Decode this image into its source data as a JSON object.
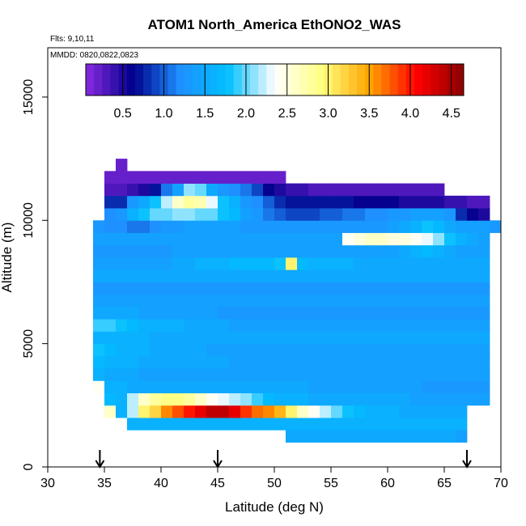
{
  "chart_data": {
    "type": "heatmap",
    "title": "ATOM1 North_America EthONO2_WAS",
    "flights_note": "Flts: 9,10,11",
    "dates_note": "MMDD: 0820,0822,0823",
    "xlabel": "Latitude (deg N)",
    "ylabel": "Altitude (m)",
    "xlim": [
      30,
      70
    ],
    "ylim": [
      0,
      17000
    ],
    "x_ticks": [
      "30",
      "35",
      "40",
      "45",
      "50",
      "55",
      "60",
      "65",
      "70"
    ],
    "y_ticks": [
      "0",
      "5000",
      "10000",
      "15000"
    ],
    "colorbar": {
      "range": [
        0.05,
        4.65
      ],
      "tick_values": [
        0.5,
        1.0,
        1.5,
        2.0,
        2.5,
        3.0,
        3.5,
        4.0,
        4.5
      ],
      "tick_labels": [
        "0.5",
        "1.0",
        "1.5",
        "2.0",
        "2.5",
        "3.0",
        "3.5",
        "4.0",
        "4.5"
      ],
      "colors": [
        "#8a2be2",
        "#00008b",
        "#1e90ff",
        "#00bfff",
        "#ffffff",
        "#ffff80",
        "#ffa500",
        "#ff0000",
        "#8b0000"
      ]
    },
    "grid": false,
    "legend": "colorbar-top",
    "arrows_latitude": [
      34.6,
      45,
      67
    ],
    "cell_size": {
      "dlat": 1.0,
      "dalt": 500
    },
    "rows": [
      {
        "alt": 1000,
        "lat_start": 51,
        "values": [
          1.5,
          1.5,
          1.5,
          1.5,
          1.5,
          1.5,
          1.5,
          1.5,
          1.5,
          1.5,
          1.5,
          1.5,
          1.5,
          1.5,
          1.5,
          1.4
        ]
      },
      {
        "alt": 1500,
        "lat_start": 37,
        "values": [
          1.6,
          1.6,
          1.6,
          1.6,
          1.6,
          1.6,
          1.6,
          1.6,
          1.6,
          1.6,
          1.6,
          1.6,
          1.6,
          1.6,
          1.6,
          1.6,
          1.6,
          1.6,
          1.6,
          1.6,
          1.6,
          1.6,
          1.6,
          1.6,
          1.6,
          1.6,
          1.6,
          1.6,
          1.6,
          1.6
        ]
      },
      {
        "alt": 2000,
        "lat_start": 35,
        "values": [
          2.6,
          1.6,
          2.2,
          3.0,
          3.2,
          3.6,
          3.8,
          4.0,
          4.2,
          4.4,
          4.4,
          4.2,
          3.9,
          3.7,
          3.6,
          3.4,
          3.0,
          2.6,
          2.4,
          2.2,
          2.0,
          1.8,
          1.7,
          1.6,
          1.6,
          1.6,
          1.5,
          1.5,
          1.5,
          1.5,
          1.5,
          1.5
        ]
      },
      {
        "alt": 2500,
        "lat_start": 35,
        "values": [
          1.7,
          1.6,
          2.2,
          2.6,
          2.8,
          2.9,
          2.9,
          2.8,
          2.6,
          2.4,
          2.3,
          2.2,
          2.1,
          1.9,
          1.7,
          1.6,
          1.6,
          1.6,
          1.5,
          1.5,
          1.5,
          1.5,
          1.5,
          1.5,
          1.5,
          1.5,
          1.5,
          1.4,
          1.4,
          1.4,
          1.4,
          1.4,
          1.4,
          1.4
        ]
      },
      {
        "alt": 3000,
        "lat_start": 34,
        "values": [
          2.4,
          1.6,
          1.6,
          1.5,
          1.5,
          1.5,
          1.5,
          1.5,
          1.5,
          1.5,
          1.5,
          1.5,
          1.5,
          1.5,
          1.5,
          1.5,
          1.5,
          1.5,
          1.5,
          1.4,
          1.4,
          1.4,
          1.4,
          1.4,
          1.4,
          1.4,
          1.4,
          1.4,
          1.4,
          1.3,
          1.3,
          1.3,
          1.3,
          1.3,
          1.3
        ]
      },
      {
        "alt": 3500,
        "lat_start": 34,
        "values": [
          1.6,
          1.5,
          1.5,
          1.5,
          1.4,
          1.4,
          1.4,
          1.4,
          1.4,
          1.4,
          1.4,
          1.4,
          1.4,
          1.4,
          1.4,
          1.4,
          1.4,
          1.4,
          1.4,
          1.4,
          1.4,
          1.4,
          1.4,
          1.4,
          1.4,
          1.4,
          1.4,
          1.4,
          1.4,
          1.4,
          1.4,
          1.4,
          1.4,
          1.4,
          1.4
        ]
      },
      {
        "alt": 4000,
        "lat_start": 34,
        "values": [
          1.7,
          1.6,
          1.6,
          1.6,
          1.5,
          1.5,
          1.5,
          1.5,
          1.5,
          1.5,
          1.5,
          1.5,
          1.4,
          1.4,
          1.4,
          1.4,
          1.4,
          1.4,
          1.4,
          1.4,
          1.4,
          1.4,
          1.4,
          1.4,
          1.4,
          1.4,
          1.4,
          1.4,
          1.4,
          1.4,
          1.4,
          1.4,
          1.4,
          1.4,
          1.4
        ]
      },
      {
        "alt": 4500,
        "lat_start": 34,
        "values": [
          1.8,
          1.7,
          1.6,
          1.6,
          1.6,
          1.5,
          1.5,
          1.5,
          1.5,
          1.5,
          1.4,
          1.4,
          1.4,
          1.4,
          1.4,
          1.4,
          1.4,
          1.4,
          1.4,
          1.4,
          1.4,
          1.4,
          1.4,
          1.4,
          1.4,
          1.4,
          1.4,
          1.4,
          1.4,
          1.4,
          1.4,
          1.4,
          1.4,
          1.4,
          1.4
        ]
      },
      {
        "alt": 5000,
        "lat_start": 34,
        "values": [
          1.6,
          1.6,
          1.6,
          1.6,
          1.6,
          1.5,
          1.5,
          1.5,
          1.5,
          1.5,
          1.5,
          1.5,
          1.5,
          1.5,
          1.5,
          1.5,
          1.5,
          1.5,
          1.5,
          1.5,
          1.5,
          1.5,
          1.5,
          1.5,
          1.5,
          1.5,
          1.5,
          1.5,
          1.5,
          1.5,
          1.5,
          1.5,
          1.5,
          1.5,
          1.5
        ]
      },
      {
        "alt": 5500,
        "lat_start": 34,
        "values": [
          1.9,
          1.9,
          1.8,
          1.7,
          1.6,
          1.6,
          1.6,
          1.6,
          1.5,
          1.5,
          1.5,
          1.5,
          1.4,
          1.4,
          1.4,
          1.4,
          1.4,
          1.4,
          1.4,
          1.4,
          1.4,
          1.4,
          1.4,
          1.4,
          1.4,
          1.4,
          1.4,
          1.4,
          1.4,
          1.4,
          1.4,
          1.4,
          1.4,
          1.4,
          1.4
        ]
      },
      {
        "alt": 6000,
        "lat_start": 34,
        "values": [
          1.5,
          1.5,
          1.5,
          1.5,
          1.4,
          1.4,
          1.4,
          1.4,
          1.4,
          1.4,
          1.4,
          1.3,
          1.3,
          1.3,
          1.3,
          1.3,
          1.3,
          1.3,
          1.3,
          1.3,
          1.3,
          1.3,
          1.3,
          1.3,
          1.3,
          1.3,
          1.3,
          1.3,
          1.3,
          1.3,
          1.3,
          1.3,
          1.3,
          1.3,
          1.3
        ]
      },
      {
        "alt": 6500,
        "lat_start": 34,
        "values": [
          1.4,
          1.4,
          1.4,
          1.4,
          1.4,
          1.4,
          1.4,
          1.4,
          1.4,
          1.4,
          1.4,
          1.4,
          1.4,
          1.4,
          1.4,
          1.4,
          1.4,
          1.4,
          1.4,
          1.4,
          1.4,
          1.4,
          1.4,
          1.4,
          1.4,
          1.4,
          1.4,
          1.4,
          1.4,
          1.4,
          1.4,
          1.4,
          1.4,
          1.4,
          1.4
        ]
      },
      {
        "alt": 7000,
        "lat_start": 34,
        "values": [
          1.3,
          1.3,
          1.3,
          1.3,
          1.3,
          1.3,
          1.3,
          1.3,
          1.3,
          1.3,
          1.3,
          1.3,
          1.3,
          1.3,
          1.3,
          1.3,
          1.3,
          1.3,
          1.3,
          1.3,
          1.3,
          1.3,
          1.3,
          1.3,
          1.3,
          1.3,
          1.3,
          1.3,
          1.3,
          1.3,
          1.3,
          1.3,
          1.3,
          1.3,
          1.3
        ]
      },
      {
        "alt": 7500,
        "lat_start": 34,
        "values": [
          1.5,
          1.5,
          1.5,
          1.5,
          1.5,
          1.5,
          1.5,
          1.5,
          1.5,
          1.5,
          1.5,
          1.5,
          1.5,
          1.5,
          1.5,
          1.5,
          1.5,
          1.5,
          1.5,
          1.5,
          1.5,
          1.5,
          1.5,
          1.5,
          1.5,
          1.5,
          1.5,
          1.5,
          1.5,
          1.5,
          1.5,
          1.5,
          1.5,
          1.5,
          1.5
        ]
      },
      {
        "alt": 8000,
        "lat_start": 34,
        "values": [
          1.4,
          1.4,
          1.4,
          1.4,
          1.4,
          1.4,
          1.4,
          1.5,
          1.5,
          1.6,
          1.6,
          1.6,
          1.7,
          1.7,
          1.7,
          1.7,
          1.8,
          3.0,
          1.7,
          1.6,
          1.6,
          1.6,
          1.6,
          1.5,
          1.5,
          1.5,
          1.5,
          1.5,
          1.5,
          1.5,
          1.5,
          1.5,
          1.5,
          1.5,
          1.5
        ]
      },
      {
        "alt": 8500,
        "lat_start": 34,
        "values": [
          1.3,
          1.3,
          1.3,
          1.3,
          1.3,
          1.3,
          1.3,
          1.4,
          1.4,
          1.4,
          1.4,
          1.4,
          1.4,
          1.4,
          1.4,
          1.4,
          1.4,
          1.4,
          1.4,
          1.4,
          1.4,
          1.4,
          1.4,
          1.4,
          1.4,
          1.4,
          1.4,
          1.5,
          1.6,
          1.7,
          1.6,
          1.5,
          1.4,
          1.4,
          1.4
        ]
      },
      {
        "alt": 9000,
        "lat_start": 34,
        "values": [
          1.4,
          1.4,
          1.4,
          1.4,
          1.4,
          1.4,
          1.4,
          1.4,
          1.4,
          1.4,
          1.4,
          1.4,
          1.4,
          1.4,
          1.4,
          1.4,
          1.4,
          1.4,
          1.4,
          1.4,
          1.4,
          1.4,
          2.4,
          2.5,
          2.6,
          2.6,
          2.5,
          2.5,
          2.4,
          2.3,
          2.1,
          1.8,
          1.6,
          1.5,
          1.4
        ]
      },
      {
        "alt": 9500,
        "lat_start": 34,
        "values": [
          1.3,
          1.2,
          1.2,
          1.1,
          1.1,
          1.2,
          1.3,
          1.3,
          1.4,
          1.4,
          1.4,
          1.4,
          1.4,
          1.3,
          1.3,
          1.3,
          1.3,
          1.3,
          1.3,
          1.3,
          1.3,
          1.3,
          1.3,
          1.3,
          1.3,
          1.3,
          1.4,
          1.5,
          1.6,
          1.8,
          1.7,
          1.5,
          1.4,
          1.4,
          1.4,
          1.3
        ]
      },
      {
        "alt": 10000,
        "lat_start": 35,
        "values": [
          1.2,
          1.3,
          1.6,
          1.8,
          2.0,
          2.0,
          2.1,
          2.1,
          2.0,
          2.0,
          1.8,
          1.7,
          1.4,
          1.3,
          1.1,
          1.0,
          0.9,
          0.9,
          0.9,
          1.0,
          1.0,
          1.1,
          1.1,
          1.2,
          1.2,
          1.3,
          1.3,
          1.4,
          1.4,
          1.4,
          1.3,
          0.8,
          0.6,
          0.5
        ]
      },
      {
        "alt": 10500,
        "lat_start": 35,
        "values": [
          0.8,
          0.8,
          1.3,
          1.5,
          1.8,
          2.2,
          2.6,
          2.8,
          2.7,
          2.3,
          1.8,
          1.6,
          1.3,
          1.2,
          1.0,
          0.8,
          0.7,
          0.7,
          0.7,
          0.7,
          0.7,
          0.7,
          0.6,
          0.6,
          0.6,
          0.6,
          0.5,
          0.5,
          0.5,
          0.5,
          0.4,
          0.4,
          0.3,
          0.3
        ]
      },
      {
        "alt": 11000,
        "lat_start": 35,
        "values": [
          0.3,
          0.3,
          0.4,
          0.5,
          0.7,
          1.1,
          1.4,
          2.1,
          2.0,
          1.5,
          1.3,
          1.2,
          1.1,
          0.9,
          0.6,
          0.5,
          0.4,
          0.4,
          0.3,
          0.3,
          0.3,
          0.3,
          0.3,
          0.3,
          0.3,
          0.3,
          0.3,
          0.3,
          0.3,
          0.3
        ]
      },
      {
        "alt": 11500,
        "lat_start": 35,
        "values": [
          0.2,
          0.2,
          0.2,
          0.2,
          0.2,
          0.2,
          0.2,
          0.2,
          0.2,
          0.2,
          0.2,
          0.2,
          0.2,
          0.2,
          0.2,
          0.2
        ]
      },
      {
        "alt": 12000,
        "lat_start": 36,
        "values": [
          0.2
        ]
      }
    ]
  }
}
